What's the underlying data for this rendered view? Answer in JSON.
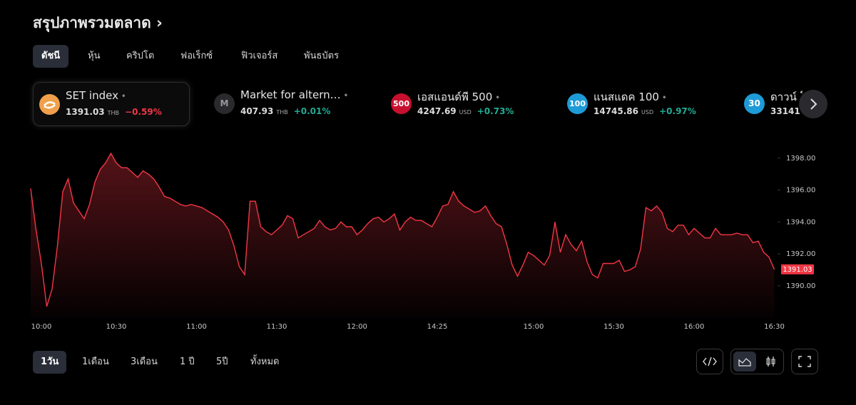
{
  "header": {
    "title": "สรุปภาพรวมตลาด",
    "chevron": "›"
  },
  "tabs": [
    "ดัชนี",
    "หุ้น",
    "คริปโต",
    "ฟอเร็กซ์",
    "ฟิวเจอร์ส",
    "พันธบัตร"
  ],
  "tickers": [
    {
      "name": "SET index",
      "price": "1391.03",
      "currency": "THB",
      "change": "−0.59%",
      "logo_color": "#f0a04b",
      "change_color": "#f23645"
    },
    {
      "logo": "M",
      "name": "Market for altern…",
      "price": "407.93",
      "currency": "THB",
      "change": "+0.01%",
      "logo_color": "#2a2a2e",
      "change_color": "#22ab94"
    },
    {
      "logo": "500",
      "name": "เอสแอนด์พี 500",
      "price": "4247.69",
      "currency": "USD",
      "change": "+0.73%",
      "logo_color": "#c8102e",
      "change_color": "#22ab94"
    },
    {
      "logo": "100",
      "name": "แนสแดค 100",
      "price": "14745.86",
      "currency": "USD",
      "change": "+0.97%",
      "logo_color": "#1e9bd7",
      "change_color": "#22ab94"
    },
    {
      "logo": "30",
      "name": "ดาวน์ โ",
      "price": "33141",
      "logo_color": "#1e9bd7"
    }
  ],
  "chart_data": {
    "type": "area",
    "color": "#f23645",
    "categories": [
      null,
      null,
      "10:00",
      null,
      null,
      null,
      null,
      null,
      null,
      null,
      null,
      null,
      null,
      null,
      null,
      null,
      "10:30",
      null,
      null,
      null,
      null,
      null,
      null,
      null,
      null,
      null,
      null,
      null,
      null,
      null,
      null,
      "11:00",
      null,
      null,
      null,
      null,
      null,
      null,
      null,
      null,
      null,
      null,
      null,
      null,
      null,
      null,
      "11:30",
      null,
      null,
      null,
      null,
      null,
      null,
      null,
      null,
      null,
      null,
      null,
      null,
      null,
      null,
      "12:00",
      null,
      null,
      null,
      null,
      null,
      null,
      null,
      null,
      null,
      null,
      null,
      null,
      null,
      null,
      "14:25",
      null,
      null,
      null,
      null,
      null,
      null,
      null,
      null,
      null,
      null,
      null,
      null,
      null,
      null,
      null,
      null,
      null,
      "15:00",
      null,
      null,
      null,
      null,
      null,
      null,
      null,
      null,
      null,
      null,
      null,
      null,
      null,
      null,
      "15:30",
      null,
      null,
      null,
      null,
      null,
      null,
      null,
      null,
      null,
      null,
      null,
      null,
      null,
      null,
      "16:00",
      null,
      null,
      null,
      null,
      null,
      null,
      null,
      null,
      null,
      null,
      null,
      null,
      null,
      null,
      "16:30"
    ],
    "values": [
      1396.1,
      1393.5,
      1391.4,
      1388.7,
      1389.8,
      1392.5,
      1395.9,
      1396.7,
      1395.2,
      1394.7,
      1394.2,
      1395.1,
      1396.5,
      1397.3,
      1397.7,
      1398.3,
      1397.7,
      1397.4,
      1397.4,
      1397.1,
      1396.8,
      1397.2,
      1397.0,
      1396.7,
      1396.2,
      1395.6,
      1395.5,
      1395.3,
      1395.1,
      1395.0,
      1395.1,
      1395.0,
      1394.9,
      1394.7,
      1394.5,
      1394.3,
      1394.0,
      1393.5,
      1392.5,
      1391.2,
      1390.7,
      1395.3,
      1395.3,
      1393.7,
      1393.4,
      1393.2,
      1393.5,
      1393.8,
      1394.4,
      1394.2,
      1393.0,
      1393.2,
      1393.4,
      1393.6,
      1394.1,
      1393.7,
      1393.5,
      1393.6,
      1394.0,
      1393.7,
      1393.7,
      1393.2,
      1393.5,
      1393.9,
      1394.2,
      1394.3,
      1394.0,
      1394.2,
      1394.5,
      1393.5,
      1394.0,
      1394.3,
      1394.1,
      1394.1,
      1393.9,
      1393.7,
      1394.3,
      1395.0,
      1395.1,
      1395.9,
      1395.3,
      1395.0,
      1394.8,
      1394.6,
      1394.7,
      1395.0,
      1394.4,
      1393.9,
      1393.7,
      1392.6,
      1391.3,
      1390.6,
      1391.3,
      1392.1,
      1391.9,
      1391.6,
      1391.3,
      1391.9,
      1394.0,
      1392.1,
      1393.2,
      1392.6,
      1392.2,
      1392.8,
      1391.5,
      1390.7,
      1390.5,
      1391.4,
      1391.4,
      1391.4,
      1391.6,
      1390.9,
      1391.0,
      1391.2,
      1392.3,
      1394.9,
      1394.7,
      1395.0,
      1394.6,
      1393.6,
      1393.4,
      1393.8,
      1393.8,
      1393.2,
      1393.6,
      1393.3,
      1393.0,
      1393.0,
      1393.6,
      1393.2,
      1393.2,
      1393.2,
      1393.3,
      1393.2,
      1393.2,
      1392.7,
      1392.8,
      1392.1,
      1391.8,
      1391.03
    ],
    "last_label": "1391.03",
    "ylim": [
      1388,
      1399.6
    ],
    "yticks": [
      {
        "value": 1390,
        "label": "1390.00"
      },
      {
        "value": 1392,
        "label": "1392.00"
      },
      {
        "value": 1394,
        "label": "1394.00"
      },
      {
        "value": 1396,
        "label": "1396.00"
      },
      {
        "value": 1398,
        "label": "1398.00"
      }
    ]
  },
  "ranges": [
    "1วัน",
    "1เดือน",
    "3เดือน",
    "1 ปี",
    "5ปี",
    "ทั้งหมด"
  ]
}
